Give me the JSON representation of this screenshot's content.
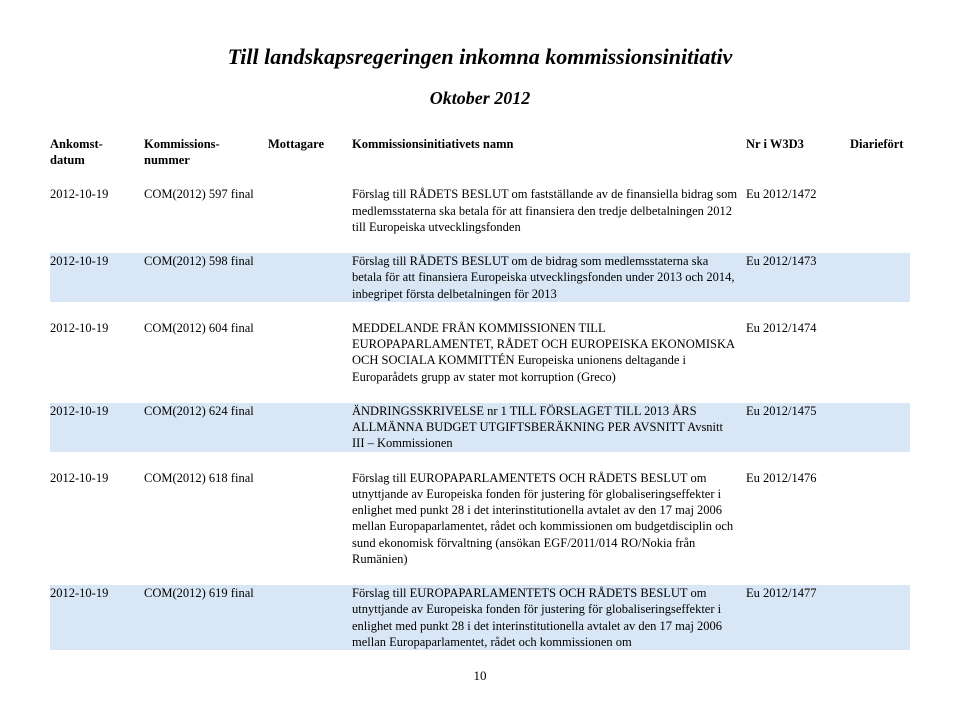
{
  "title": "Till landskapsregeringen inkomna kommissionsinitiativ",
  "subtitle": "Oktober 2012",
  "headers": {
    "col0": "Ankomst-\ndatum",
    "col1": "Kommissions-\nnummer",
    "col2": "Mottagare",
    "col3": "Kommissionsinitiativets namn",
    "col4": "Nr i W3D3",
    "col5": "Diariefört"
  },
  "rows": [
    {
      "date": "2012-10-19",
      "number": "COM(2012) 597 final",
      "mott": "",
      "desc": "Förslag till RÅDETS BESLUT om fastställande av de finansiella bidrag som medlemsstaterna ska betala för att finansiera den tredje delbetalningen 2012 till Europeiska utvecklingsfonden",
      "w3d3": "Eu 2012/1472",
      "diar": "",
      "alt": false
    },
    {
      "date": "2012-10-19",
      "number": "COM(2012) 598 final",
      "mott": "",
      "desc": "Förslag till RÅDETS BESLUT om de bidrag som medlemsstaterna ska betala för att finansiera Europeiska utvecklingsfonden under 2013 och 2014, inbegripet första delbetalningen för 2013",
      "w3d3": "Eu 2012/1473",
      "diar": "",
      "alt": true
    },
    {
      "date": "2012-10-19",
      "number": "COM(2012) 604 final",
      "mott": "",
      "desc": "MEDDELANDE FRÅN KOMMISSIONEN TILL EUROPAPARLAMENTET, RÅDET OCH EUROPEISKA EKONOMISKA OCH SOCIALA KOMMITTÉN Europeiska unionens deltagande i Europarådets grupp av stater mot korruption (Greco)",
      "w3d3": "Eu 2012/1474",
      "diar": "",
      "alt": false
    },
    {
      "date": "2012-10-19",
      "number": "COM(2012) 624 final",
      "mott": "",
      "desc": "ÄNDRINGSSKRIVELSE nr 1 TILL FÖRSLAGET TILL 2013 ÅRS ALLMÄNNA BUDGET UTGIFTSBERÄKNING PER AVSNITT Avsnitt III – Kommissionen",
      "w3d3": "Eu 2012/1475",
      "diar": "",
      "alt": true
    },
    {
      "date": "2012-10-19",
      "number": "COM(2012) 618 final",
      "mott": "",
      "desc": "Förslag till EUROPAPARLAMENTETS OCH RÅDETS BESLUT om utnyttjande av Europeiska fonden för justering för globaliseringseffekter i enlighet med punkt 28 i det interinstitutionella avtalet av den 17 maj 2006 mellan Europaparlamentet, rådet och kommissionen om budgetdisciplin och sund ekonomisk förvaltning (ansökan EGF/2011/014 RO/Nokia från Rumänien)",
      "w3d3": "Eu 2012/1476",
      "diar": "",
      "alt": false
    },
    {
      "date": "2012-10-19",
      "number": "COM(2012) 619 final",
      "mott": "",
      "desc": "Förslag till EUROPAPARLAMENTETS OCH RÅDETS BESLUT om utnyttjande av Europeiska fonden för justering för globaliseringseffekter i enlighet med punkt 28 i det interinstitutionella avtalet av den 17 maj 2006 mellan Europaparlamentet, rådet och kommissionen om",
      "w3d3": "Eu 2012/1477",
      "diar": "",
      "alt": true
    }
  ],
  "pageNumber": "10"
}
